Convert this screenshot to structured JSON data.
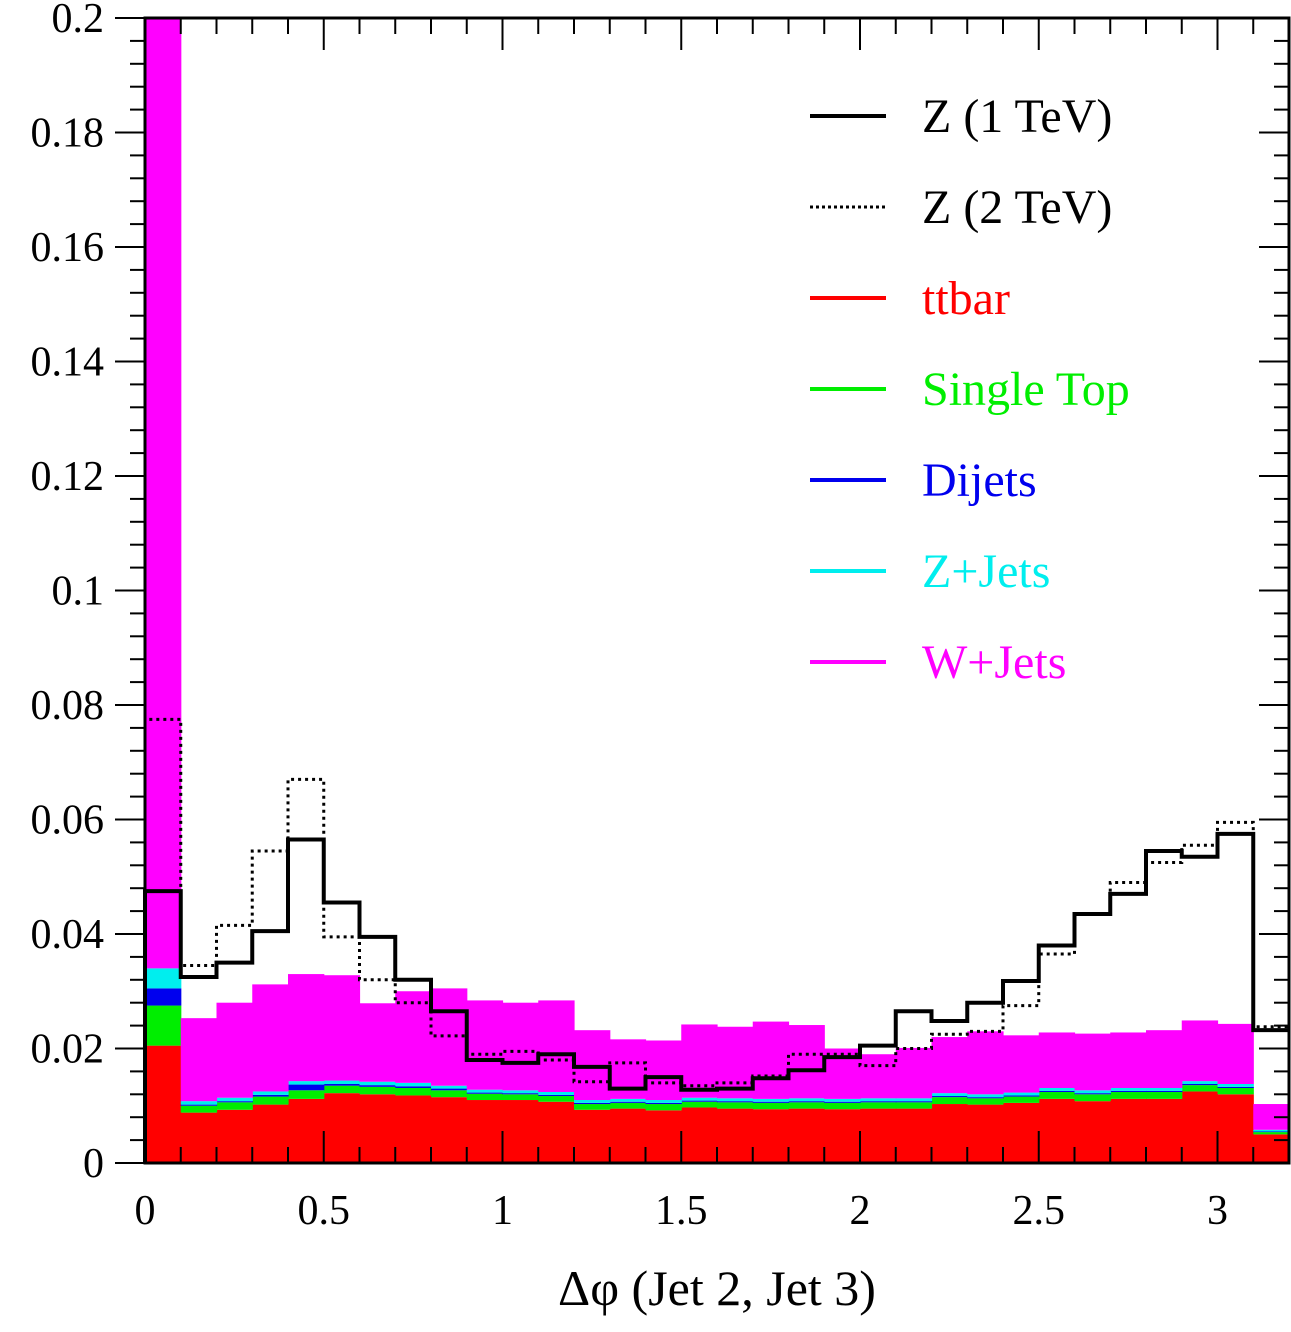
{
  "chart_data": {
    "type": "bar",
    "stacked": true,
    "title": "",
    "xlabel": "Δφ (Jet 2, Jet 3)",
    "ylabel": "",
    "xlim": [
      0,
      3.2
    ],
    "ylim": [
      0,
      0.2
    ],
    "bin_width": 0.1,
    "x_ticks": [
      "0",
      "0.5",
      "1",
      "1.5",
      "2",
      "2.5",
      "3"
    ],
    "y_ticks": [
      "0",
      "0.02",
      "0.04",
      "0.06",
      "0.08",
      "0.1",
      "0.12",
      "0.14",
      "0.16",
      "0.18",
      "0.2"
    ],
    "x_tick_values": [
      0,
      0.5,
      1,
      1.5,
      2,
      2.5,
      3
    ],
    "y_tick_values": [
      0,
      0.02,
      0.04,
      0.06,
      0.08,
      0.1,
      0.12,
      0.14,
      0.16,
      0.18,
      0.2
    ],
    "bin_edges": [
      0,
      0.1,
      0.2,
      0.3,
      0.4,
      0.5,
      0.6,
      0.7,
      0.8,
      0.9,
      1.0,
      1.1,
      1.2,
      1.3,
      1.4,
      1.5,
      1.6,
      1.7,
      1.8,
      1.9,
      2.0,
      2.1,
      2.2,
      2.3,
      2.4,
      2.5,
      2.6,
      2.7,
      2.8,
      2.9,
      3.0,
      3.1,
      3.2
    ],
    "legend_position": "top-right",
    "stacked_series": [
      {
        "name": "ttbar",
        "color": "#ff0000",
        "values": [
          0.0205,
          0.0088,
          0.0093,
          0.0102,
          0.0112,
          0.0122,
          0.012,
          0.0118,
          0.0115,
          0.011,
          0.011,
          0.0107,
          0.0093,
          0.0095,
          0.0092,
          0.0097,
          0.0095,
          0.0094,
          0.0095,
          0.0094,
          0.0095,
          0.0095,
          0.0103,
          0.0102,
          0.0105,
          0.0112,
          0.0108,
          0.0112,
          0.0112,
          0.0125,
          0.012,
          0.005
        ]
      },
      {
        "name": "Single Top",
        "color": "#00ee00",
        "values": [
          0.007,
          0.0012,
          0.0013,
          0.0014,
          0.0015,
          0.0013,
          0.0013,
          0.0013,
          0.0012,
          0.0011,
          0.001,
          0.001,
          0.001,
          0.001,
          0.0011,
          0.001,
          0.0011,
          0.0011,
          0.0011,
          0.0011,
          0.0011,
          0.0011,
          0.0012,
          0.0011,
          0.0011,
          0.0012,
          0.0012,
          0.0012,
          0.0012,
          0.0011,
          0.0011,
          0.0004
        ]
      },
      {
        "name": "Dijets",
        "color": "#0000ee",
        "values": [
          0.003,
          0.0002,
          0.0002,
          0.0003,
          0.001,
          0.0003,
          0.0003,
          0.0003,
          0.0003,
          0.0002,
          0.0002,
          0.0002,
          0.0002,
          0.0002,
          0.0002,
          0.0002,
          0.0002,
          0.0002,
          0.0002,
          0.0002,
          0.0002,
          0.0002,
          0.0002,
          0.0002,
          0.0002,
          0.0002,
          0.0002,
          0.0002,
          0.0002,
          0.0002,
          0.0002,
          0.0001
        ]
      },
      {
        "name": "Z+Jets",
        "color": "#00eeee",
        "values": [
          0.0035,
          0.0006,
          0.0006,
          0.0006,
          0.0006,
          0.0006,
          0.0006,
          0.0006,
          0.0005,
          0.0005,
          0.0005,
          0.0005,
          0.0005,
          0.0005,
          0.0005,
          0.0005,
          0.0005,
          0.0005,
          0.0005,
          0.0005,
          0.0005,
          0.0005,
          0.0005,
          0.0005,
          0.0005,
          0.0005,
          0.0005,
          0.0005,
          0.0005,
          0.0005,
          0.0005,
          0.0003
        ]
      },
      {
        "name": "W+Jets",
        "color": "#ff00ff",
        "values": [
          0.166,
          0.0145,
          0.0166,
          0.0187,
          0.0187,
          0.0184,
          0.0137,
          0.016,
          0.017,
          0.0156,
          0.0153,
          0.016,
          0.0122,
          0.0104,
          0.0104,
          0.0128,
          0.0125,
          0.0135,
          0.0128,
          0.0088,
          0.0077,
          0.0088,
          0.0098,
          0.011,
          0.01,
          0.0097,
          0.0099,
          0.0097,
          0.0101,
          0.0106,
          0.0105,
          0.0045
        ]
      }
    ],
    "line_series": [
      {
        "name": "Z (1 TeV)",
        "style": "solid",
        "color": "#000000",
        "values": [
          0.0475,
          0.0325,
          0.035,
          0.0405,
          0.0565,
          0.0455,
          0.0395,
          0.032,
          0.0265,
          0.018,
          0.0175,
          0.019,
          0.0168,
          0.013,
          0.015,
          0.0128,
          0.013,
          0.0148,
          0.0162,
          0.0185,
          0.0205,
          0.0265,
          0.0248,
          0.028,
          0.0318,
          0.038,
          0.0435,
          0.047,
          0.0545,
          0.0535,
          0.0575,
          0.0232
        ]
      },
      {
        "name": "Z (2 TeV)",
        "style": "dotted",
        "color": "#000000",
        "values": [
          0.0775,
          0.0345,
          0.0415,
          0.0545,
          0.067,
          0.0395,
          0.032,
          0.028,
          0.0222,
          0.019,
          0.0195,
          0.018,
          0.0142,
          0.0175,
          0.014,
          0.0135,
          0.014,
          0.0152,
          0.019,
          0.019,
          0.017,
          0.02,
          0.0225,
          0.023,
          0.0275,
          0.0365,
          0.0435,
          0.049,
          0.0525,
          0.0555,
          0.0595,
          0.0238
        ]
      }
    ],
    "legend": [
      {
        "label": "Z (1 TeV)",
        "color": "#000000",
        "style": "solid"
      },
      {
        "label": "Z (2 TeV)",
        "color": "#000000",
        "style": "dotted"
      },
      {
        "label": "ttbar",
        "color": "#ff0000",
        "style": "solid"
      },
      {
        "label": "Single Top",
        "color": "#00ee00",
        "style": "solid"
      },
      {
        "label": "Dijets",
        "color": "#0000ee",
        "style": "solid"
      },
      {
        "label": "Z+Jets",
        "color": "#00eeee",
        "style": "solid"
      },
      {
        "label": "W+Jets",
        "color": "#ff00ff",
        "style": "solid"
      }
    ]
  }
}
